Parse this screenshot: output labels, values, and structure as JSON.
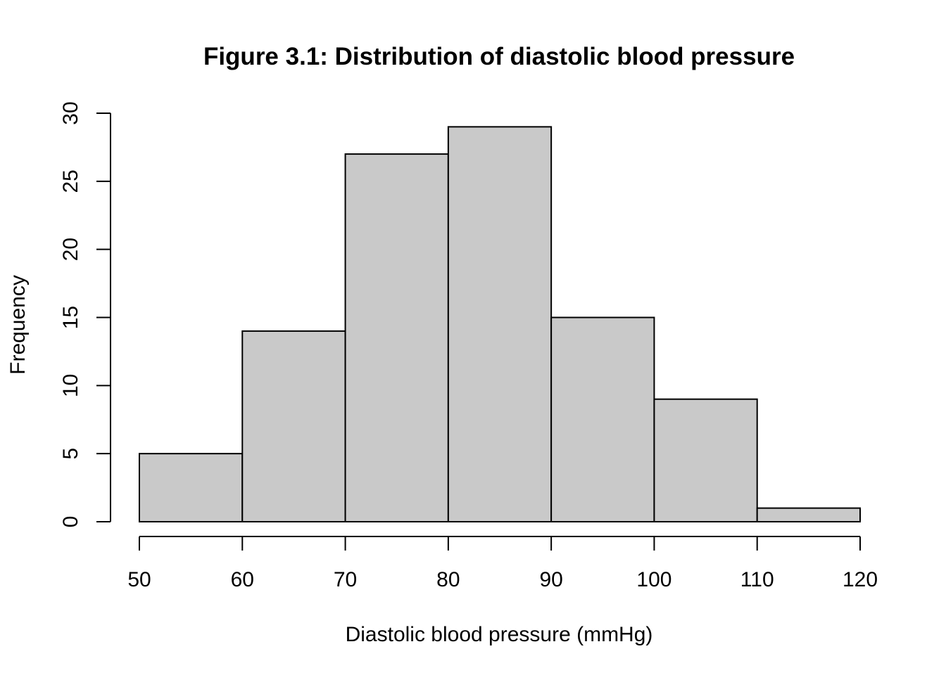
{
  "chart_data": {
    "type": "bar",
    "title": "Figure 3.1: Distribution of diastolic blood pressure",
    "xlabel": "Diastolic blood pressure (mmHg)",
    "ylabel": "Frequency",
    "bins": [
      {
        "from": 50,
        "to": 60,
        "value": 5
      },
      {
        "from": 60,
        "to": 70,
        "value": 14
      },
      {
        "from": 70,
        "to": 80,
        "value": 27
      },
      {
        "from": 80,
        "to": 90,
        "value": 29
      },
      {
        "from": 90,
        "to": 100,
        "value": 15
      },
      {
        "from": 100,
        "to": 110,
        "value": 9
      },
      {
        "from": 110,
        "to": 120,
        "value": 1
      }
    ],
    "xlim": [
      50,
      120
    ],
    "ylim": [
      0,
      30
    ],
    "x_ticks": [
      50,
      60,
      70,
      80,
      90,
      100,
      110,
      120
    ],
    "y_ticks": [
      0,
      5,
      10,
      15,
      20,
      25,
      30
    ],
    "bar_color": "#C9C9C9",
    "edge_color": "#000000",
    "grid": false
  }
}
